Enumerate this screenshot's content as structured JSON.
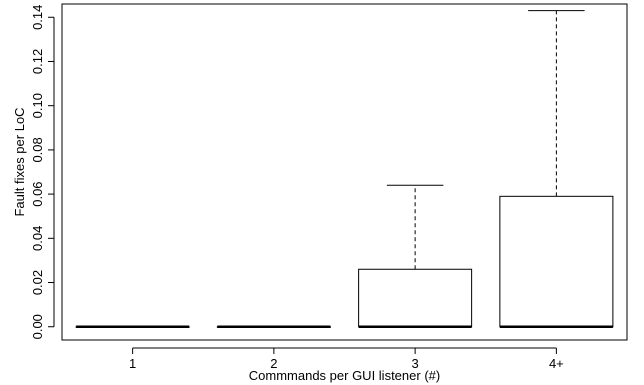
{
  "chart_data": {
    "type": "boxplot",
    "title": "",
    "xlabel": "Commmands per GUI listener (#)",
    "ylabel": "Fault fixes per LoC",
    "ylim": [
      -0.006,
      0.146
    ],
    "yticks": [
      "0.00",
      "0.02",
      "0.04",
      "0.06",
      "0.08",
      "0.10",
      "0.12",
      "0.14"
    ],
    "categories": [
      "1",
      "2",
      "3",
      "4+"
    ],
    "boxes": [
      {
        "category": "1",
        "whisker_low": 0,
        "q1": 0,
        "median": 0,
        "q3": 0,
        "whisker_high": 0
      },
      {
        "category": "2",
        "whisker_low": 0,
        "q1": 0,
        "median": 0,
        "q3": 0,
        "whisker_high": 0
      },
      {
        "category": "3",
        "whisker_low": 0,
        "q1": 0,
        "median": 0,
        "q3": 0.026,
        "whisker_high": 0.064
      },
      {
        "category": "4+",
        "whisker_low": 0,
        "q1": 0,
        "median": 0,
        "q3": 0.059,
        "whisker_high": 0.143
      }
    ],
    "grid": false,
    "legend": "none"
  }
}
